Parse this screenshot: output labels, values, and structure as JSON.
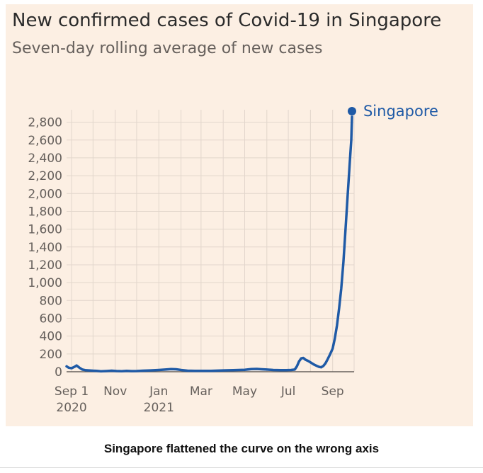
{
  "chart_data": {
    "type": "line",
    "title": "New confirmed cases of Covid-19 in Singapore",
    "subtitle": "Seven-day rolling average of new cases",
    "ylim": [
      0,
      2900
    ],
    "yticks": [
      0,
      200,
      400,
      600,
      800,
      1000,
      1200,
      1400,
      1600,
      1800,
      2000,
      2200,
      2400,
      2600,
      2800
    ],
    "ytick_labels": [
      "0",
      "200",
      "400",
      "600",
      "800",
      "1,000",
      "1,200",
      "1,400",
      "1,600",
      "1,800",
      "2,000",
      "2,200",
      "2,400",
      "2,600",
      "2,800"
    ],
    "xlim": [
      "2020-08-25",
      "2021-10-01"
    ],
    "xticks": [
      {
        "date": "2020-09-01",
        "label": "Sep 1",
        "sublabel": "2020"
      },
      {
        "date": "2020-11-01",
        "label": "Nov",
        "sublabel": ""
      },
      {
        "date": "2021-01-01",
        "label": "Jan",
        "sublabel": "2021"
      },
      {
        "date": "2021-03-01",
        "label": "Mar",
        "sublabel": ""
      },
      {
        "date": "2021-05-01",
        "label": "May",
        "sublabel": ""
      },
      {
        "date": "2021-07-01",
        "label": "Jul",
        "sublabel": ""
      },
      {
        "date": "2021-09-01",
        "label": "Sep",
        "sublabel": ""
      }
    ],
    "grid": true,
    "legend": "end-label",
    "series": [
      {
        "name": "Singapore",
        "color": "#1f5aa6",
        "points": [
          [
            "2020-08-25",
            60
          ],
          [
            "2020-08-28",
            45
          ],
          [
            "2020-09-01",
            40
          ],
          [
            "2020-09-05",
            55
          ],
          [
            "2020-09-08",
            70
          ],
          [
            "2020-09-12",
            45
          ],
          [
            "2020-09-16",
            25
          ],
          [
            "2020-09-20",
            18
          ],
          [
            "2020-09-25",
            15
          ],
          [
            "2020-10-01",
            12
          ],
          [
            "2020-10-06",
            10
          ],
          [
            "2020-10-12",
            5
          ],
          [
            "2020-10-20",
            8
          ],
          [
            "2020-10-27",
            12
          ],
          [
            "2020-11-03",
            8
          ],
          [
            "2020-11-10",
            6
          ],
          [
            "2020-11-17",
            10
          ],
          [
            "2020-11-24",
            7
          ],
          [
            "2020-12-01",
            8
          ],
          [
            "2020-12-10",
            12
          ],
          [
            "2020-12-20",
            15
          ],
          [
            "2021-01-01",
            20
          ],
          [
            "2021-01-10",
            25
          ],
          [
            "2021-01-18",
            30
          ],
          [
            "2021-01-25",
            28
          ],
          [
            "2021-02-01",
            20
          ],
          [
            "2021-02-10",
            12
          ],
          [
            "2021-02-20",
            10
          ],
          [
            "2021-03-01",
            10
          ],
          [
            "2021-03-15",
            10
          ],
          [
            "2021-04-01",
            15
          ],
          [
            "2021-04-15",
            18
          ],
          [
            "2021-05-01",
            22
          ],
          [
            "2021-05-10",
            30
          ],
          [
            "2021-05-18",
            32
          ],
          [
            "2021-05-25",
            28
          ],
          [
            "2021-06-01",
            25
          ],
          [
            "2021-06-10",
            20
          ],
          [
            "2021-06-20",
            18
          ],
          [
            "2021-06-28",
            18
          ],
          [
            "2021-07-05",
            20
          ],
          [
            "2021-07-10",
            25
          ],
          [
            "2021-07-13",
            60
          ],
          [
            "2021-07-16",
            115
          ],
          [
            "2021-07-19",
            150
          ],
          [
            "2021-07-22",
            155
          ],
          [
            "2021-07-25",
            135
          ],
          [
            "2021-07-29",
            120
          ],
          [
            "2021-08-02",
            100
          ],
          [
            "2021-08-06",
            80
          ],
          [
            "2021-08-10",
            65
          ],
          [
            "2021-08-13",
            55
          ],
          [
            "2021-08-16",
            50
          ],
          [
            "2021-08-19",
            65
          ],
          [
            "2021-08-22",
            95
          ],
          [
            "2021-08-25",
            140
          ],
          [
            "2021-08-28",
            190
          ],
          [
            "2021-09-01",
            260
          ],
          [
            "2021-09-04",
            370
          ],
          [
            "2021-09-07",
            520
          ],
          [
            "2021-09-10",
            710
          ],
          [
            "2021-09-13",
            930
          ],
          [
            "2021-09-16",
            1230
          ],
          [
            "2021-09-19",
            1600
          ],
          [
            "2021-09-22",
            1980
          ],
          [
            "2021-09-25",
            2350
          ],
          [
            "2021-09-27",
            2600
          ],
          [
            "2021-09-28",
            2860
          ]
        ]
      }
    ]
  },
  "caption": "Singapore flattened the curve on the wrong axis"
}
